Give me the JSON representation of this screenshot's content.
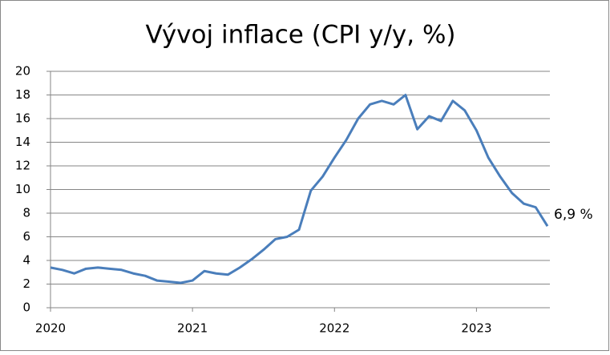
{
  "chart_data": {
    "type": "line",
    "title": "Vývoj inflace (CPI y/y, %)",
    "categories": [
      "2020",
      null,
      null,
      null,
      null,
      null,
      null,
      null,
      null,
      null,
      null,
      null,
      "2021",
      null,
      null,
      null,
      null,
      null,
      null,
      null,
      null,
      null,
      null,
      null,
      "2022",
      null,
      null,
      null,
      null,
      null,
      null,
      null,
      null,
      null,
      null,
      null,
      "2023",
      null,
      null,
      null,
      null,
      null,
      null
    ],
    "series": [
      {
        "name": "CPI y/y",
        "color": "#4a7ebb",
        "values": [
          3.4,
          3.2,
          2.9,
          3.3,
          3.4,
          3.3,
          3.2,
          2.9,
          2.7,
          2.3,
          2.2,
          2.1,
          2.3,
          3.1,
          2.9,
          2.8,
          3.4,
          4.1,
          4.9,
          5.8,
          6.0,
          6.6,
          9.9,
          11.1,
          12.7,
          14.2,
          16.0,
          17.2,
          17.5,
          17.2,
          18.0,
          15.1,
          16.2,
          15.8,
          17.5,
          16.7,
          15.0,
          12.7,
          11.1,
          9.7,
          8.8,
          8.5,
          6.9
        ],
        "value_labels": [
          null,
          null,
          null,
          null,
          null,
          null,
          null,
          null,
          null,
          null,
          null,
          null,
          null,
          null,
          null,
          null,
          null,
          null,
          null,
          null,
          null,
          null,
          null,
          null,
          null,
          null,
          null,
          null,
          null,
          null,
          null,
          null,
          null,
          null,
          null,
          null,
          null,
          null,
          null,
          null,
          null,
          null,
          "6,9 %"
        ]
      }
    ],
    "ylim": [
      0,
      20
    ],
    "yticks": [
      0,
      2,
      4,
      6,
      8,
      10,
      12,
      14,
      16,
      18,
      20
    ],
    "grid": true
  }
}
